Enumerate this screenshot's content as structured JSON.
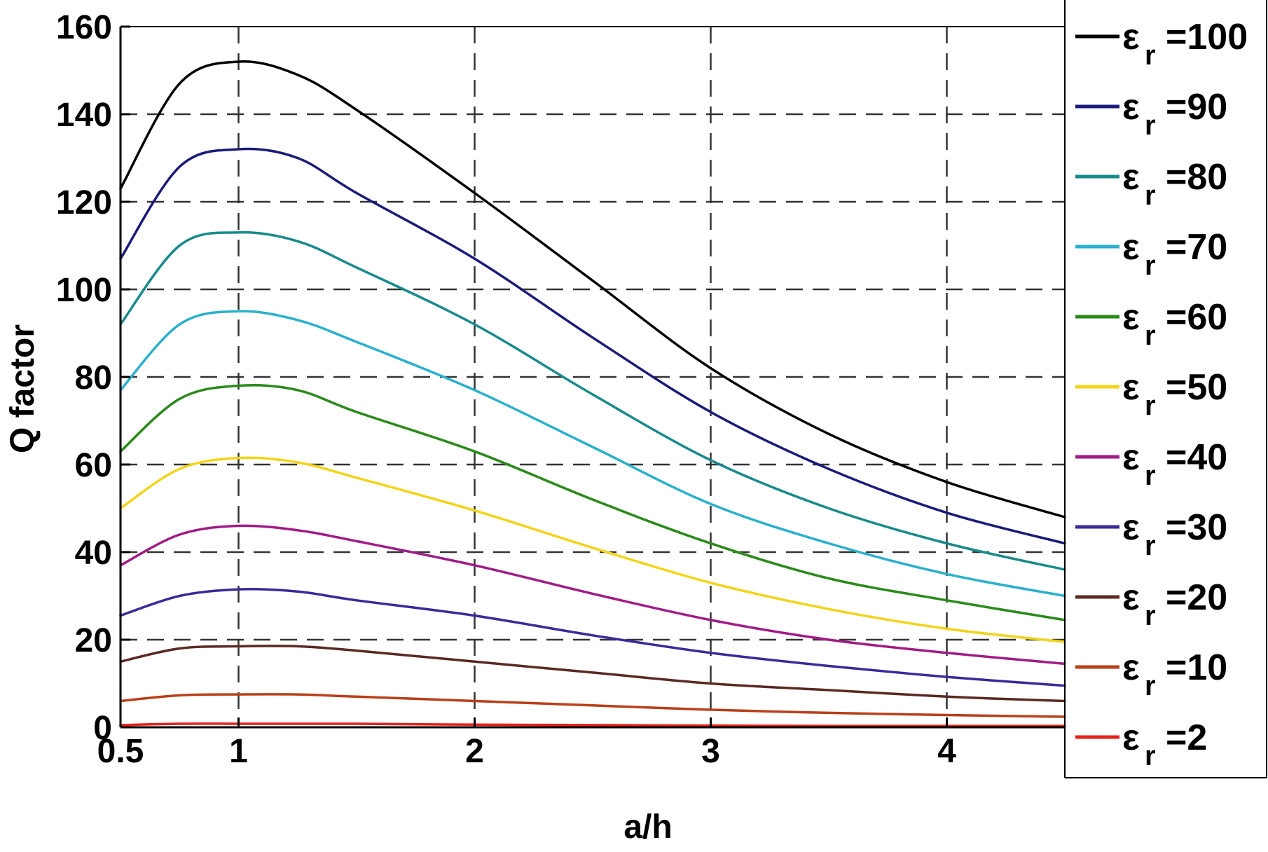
{
  "chart_data": {
    "type": "line",
    "title": "",
    "xlabel": "a/h",
    "ylabel": "Q factor",
    "xlim": [
      0.5,
      4.5
    ],
    "ylim": [
      0,
      160
    ],
    "x_ticks": [
      0.5,
      1,
      2,
      3,
      4
    ],
    "x_tick_labels": [
      "0.5",
      "1",
      "2",
      "3",
      "4"
    ],
    "y_ticks": [
      0,
      20,
      40,
      60,
      80,
      100,
      120,
      140,
      160
    ],
    "y_tick_labels": [
      "0",
      "20",
      "40",
      "60",
      "80",
      "100",
      "120",
      "140",
      "160"
    ],
    "grid": "dashed",
    "legend_position": "right-outside",
    "x": [
      0.5,
      0.75,
      1.0,
      1.25,
      1.5,
      2.0,
      2.5,
      3.0,
      3.5,
      4.0,
      4.5
    ],
    "series": [
      {
        "name": "εr =100",
        "symbol": "ε",
        "subscript": "r",
        "value_label": "=100",
        "color": "#000000",
        "values": [
          123,
          147,
          152,
          149,
          141,
          122,
          102,
          82,
          67,
          56,
          48
        ]
      },
      {
        "name": "εr =90",
        "symbol": "ε",
        "subscript": "r",
        "value_label": "=90",
        "color": "#1b1b7a",
        "values": [
          107,
          128,
          132,
          130,
          122,
          107,
          89,
          72,
          59,
          49,
          42
        ]
      },
      {
        "name": "εr =80",
        "symbol": "ε",
        "subscript": "r",
        "value_label": "=80",
        "color": "#188a8a",
        "values": [
          92,
          110,
          113,
          111,
          105,
          92,
          76,
          61,
          50,
          42,
          36
        ]
      },
      {
        "name": "εr =70",
        "symbol": "ε",
        "subscript": "r",
        "value_label": "=70",
        "color": "#2ab0cc",
        "values": [
          77,
          92,
          95,
          93,
          88,
          77,
          64,
          51,
          42,
          35,
          30
        ]
      },
      {
        "name": "εr =60",
        "symbol": "ε",
        "subscript": "r",
        "value_label": "=60",
        "color": "#2a8a1a",
        "values": [
          63,
          75,
          78,
          77,
          72,
          63,
          52,
          42,
          34,
          29,
          24.5
        ]
      },
      {
        "name": "εr =50",
        "symbol": "ε",
        "subscript": "r",
        "value_label": "=50",
        "color": "#f2d41a",
        "values": [
          50,
          59,
          61.5,
          60.5,
          57,
          49.5,
          41,
          33,
          27,
          22.5,
          19.5
        ]
      },
      {
        "name": "εr =40",
        "symbol": "ε",
        "subscript": "r",
        "value_label": "=40",
        "color": "#a01c86",
        "values": [
          37,
          44,
          46,
          45,
          42.5,
          37,
          30.5,
          24.5,
          20,
          17,
          14.5
        ]
      },
      {
        "name": "εr =30",
        "symbol": "ε",
        "subscript": "r",
        "value_label": "=30",
        "color": "#3a2a9a",
        "values": [
          25.5,
          30,
          31.5,
          31,
          29,
          25.5,
          21,
          17,
          14,
          11.5,
          9.5
        ]
      },
      {
        "name": "εr =20",
        "symbol": "ε",
        "subscript": "r",
        "value_label": "=20",
        "color": "#5a2a22",
        "values": [
          15,
          18,
          18.5,
          18.5,
          17.5,
          15,
          12.5,
          10,
          8.5,
          7,
          6
        ]
      },
      {
        "name": "εr =10",
        "symbol": "ε",
        "subscript": "r",
        "value_label": "=10",
        "color": "#b8401a",
        "values": [
          6,
          7.3,
          7.5,
          7.5,
          7,
          6,
          5,
          4,
          3.3,
          2.8,
          2.4
        ]
      },
      {
        "name": "εr =2",
        "symbol": "ε",
        "subscript": "r",
        "value_label": "=2",
        "color": "#e8201a",
        "values": [
          0.5,
          0.8,
          0.8,
          0.8,
          0.8,
          0.6,
          0.5,
          0.4,
          0.3,
          0.3,
          0.3
        ]
      }
    ]
  }
}
